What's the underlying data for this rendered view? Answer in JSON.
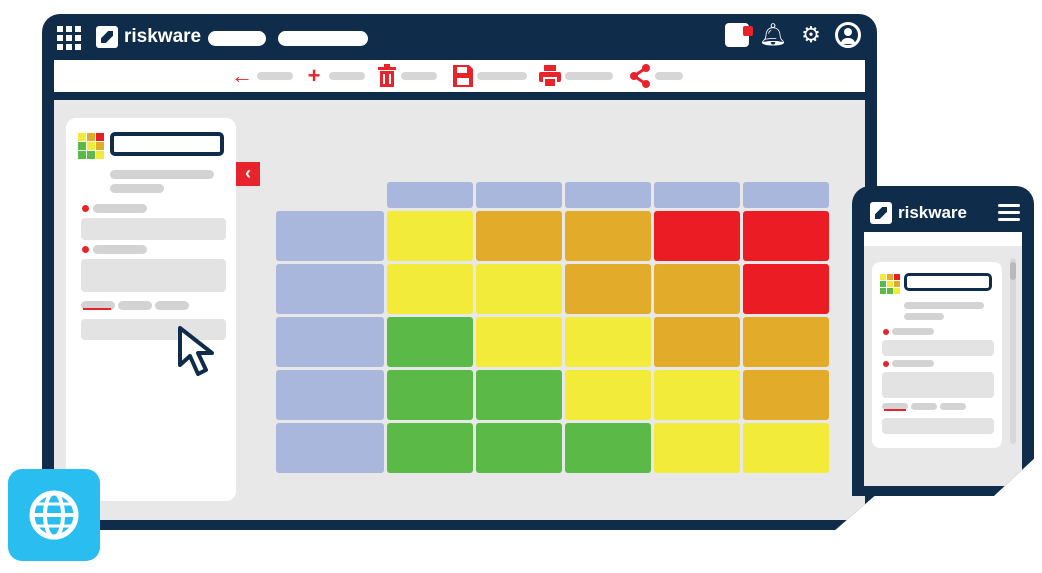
{
  "app": {
    "brand": "riskware"
  },
  "topbar": {
    "icons": [
      "apps-grid-icon",
      "notification-badge-icon",
      "bell-icon",
      "gear-icon",
      "user-avatar-icon"
    ]
  },
  "toolbar": {
    "actions": [
      "back-arrow-icon",
      "add-icon",
      "delete-trash-icon",
      "save-icon",
      "print-icon",
      "share-icon"
    ]
  },
  "panel": {
    "collapse_icon": "chevron-left-icon"
  },
  "colors": {
    "navy": "#0f2d4a",
    "header": "#aab7dc",
    "green": "#5bba47",
    "yellow": "#f3eb39",
    "orange": "#e2ac2a",
    "red": "#ec1c24",
    "globe": "#29bdf0"
  },
  "risk_matrix": {
    "columns": 5,
    "rows": [
      [
        "yellow",
        "orange",
        "orange",
        "red",
        "red"
      ],
      [
        "yellow",
        "yellow",
        "orange",
        "orange",
        "red"
      ],
      [
        "green",
        "yellow",
        "yellow",
        "orange",
        "orange"
      ],
      [
        "green",
        "green",
        "yellow",
        "yellow",
        "orange"
      ],
      [
        "green",
        "green",
        "green",
        "yellow",
        "yellow"
      ]
    ]
  },
  "mobile": {
    "brand": "riskware",
    "menu_icon": "hamburger-menu-icon"
  },
  "globe_button": {
    "icon": "globe-icon"
  }
}
